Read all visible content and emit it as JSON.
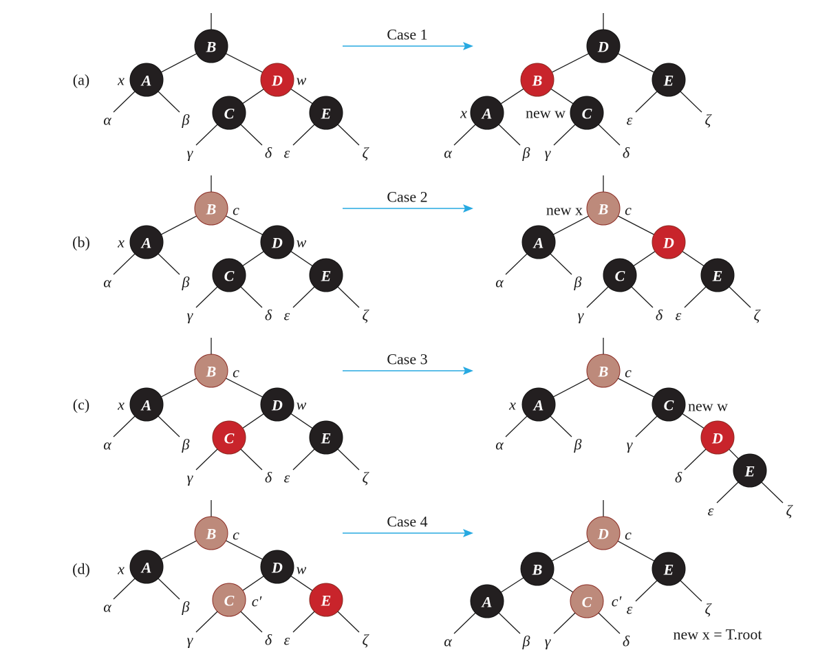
{
  "colors": {
    "black": "#231f20",
    "red": "#c8242b",
    "gray": "#bd8a7b",
    "arrow": "#27a9e1"
  },
  "rows": [
    {
      "id": "a",
      "label": "(a)",
      "case": "Case 1"
    },
    {
      "id": "b",
      "label": "(b)",
      "case": "Case 2"
    },
    {
      "id": "c",
      "label": "(c)",
      "case": "Case 3"
    },
    {
      "id": "d",
      "label": "(d)",
      "case": "Case 4"
    }
  ],
  "node_letters": [
    "A",
    "B",
    "C",
    "D",
    "E"
  ],
  "subtree_letters": [
    "α",
    "β",
    "γ",
    "δ",
    "ε",
    "ζ"
  ],
  "labels": {
    "x": "x",
    "w": "w",
    "c": "c",
    "c_prime": "c′",
    "new_x": "new x",
    "new_w": "new w",
    "new_x_root": "new x = T.root"
  },
  "trees": [
    {
      "row": "a",
      "side": "before",
      "colors": {
        "B": "black",
        "A": "black",
        "D": "red",
        "C": "black",
        "E": "black"
      }
    },
    {
      "row": "a",
      "side": "after",
      "colors": {
        "D": "black",
        "B": "red",
        "E": "black",
        "A": "black",
        "C": "black"
      }
    },
    {
      "row": "b",
      "side": "before",
      "colors": {
        "B": "gray",
        "A": "black",
        "D": "black",
        "C": "black",
        "E": "black"
      }
    },
    {
      "row": "b",
      "side": "after",
      "colors": {
        "B": "gray",
        "A": "black",
        "D": "red",
        "C": "black",
        "E": "black"
      }
    },
    {
      "row": "c",
      "side": "before",
      "colors": {
        "B": "gray",
        "A": "black",
        "D": "black",
        "C": "red",
        "E": "black"
      }
    },
    {
      "row": "c",
      "side": "after",
      "colors": {
        "B": "gray",
        "A": "black",
        "C": "black",
        "D": "red",
        "E": "black"
      }
    },
    {
      "row": "d",
      "side": "before",
      "colors": {
        "B": "gray",
        "A": "black",
        "D": "black",
        "C": "gray",
        "E": "red"
      }
    },
    {
      "row": "d",
      "side": "after",
      "colors": {
        "D": "gray",
        "B": "black",
        "E": "black",
        "A": "black",
        "C": "gray"
      }
    }
  ]
}
